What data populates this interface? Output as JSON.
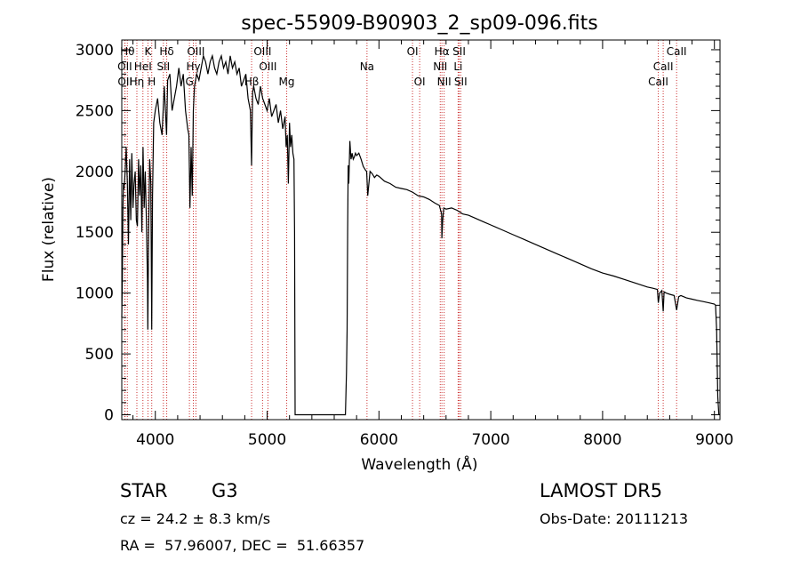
{
  "chart_data": {
    "type": "line",
    "title": "spec-55909-B90903_2_sp09-096.fits",
    "xlabel": "Wavelength (Å)",
    "ylabel": "Flux (relative)",
    "xlim": [
      3700,
      9050
    ],
    "ylim": [
      -40,
      3080
    ],
    "x_ticks": [
      4000,
      5000,
      6000,
      7000,
      8000,
      9000
    ],
    "y_ticks": [
      0,
      500,
      1000,
      1500,
      2000,
      2500,
      3000
    ],
    "grid": false,
    "line_color": "#000000",
    "line_marker_color": "#cc3333",
    "series": [
      {
        "x": [
          3700,
          3705,
          3710,
          3715,
          3720,
          3730,
          3740,
          3750,
          3760,
          3770,
          3780,
          3790,
          3800,
          3810,
          3820,
          3830,
          3840,
          3850,
          3860,
          3870,
          3880,
          3890,
          3900,
          3910,
          3920,
          3930,
          3933,
          3940,
          3950,
          3960,
          3968,
          3975,
          3985,
          4000,
          4020,
          4040,
          4060,
          4080,
          4101,
          4110,
          4130,
          4150,
          4170,
          4190,
          4210,
          4230,
          4250,
          4270,
          4290,
          4300,
          4310,
          4320,
          4330,
          4340,
          4350,
          4370,
          4390,
          4410,
          4430,
          4450,
          4470,
          4490,
          4510,
          4530,
          4550,
          4570,
          4590,
          4610,
          4630,
          4650,
          4670,
          4690,
          4710,
          4730,
          4750,
          4770,
          4790,
          4810,
          4830,
          4850,
          4861,
          4870,
          4880,
          4900,
          4920,
          4940,
          4960,
          4980,
          5000,
          5020,
          5040,
          5060,
          5080,
          5100,
          5120,
          5140,
          5160,
          5170,
          5180,
          5190,
          5200,
          5210,
          5220,
          5230,
          5240,
          5245,
          5250,
          5700,
          5710,
          5715,
          5720,
          5725,
          5730,
          5740,
          5750,
          5760,
          5770,
          5780,
          5790,
          5800,
          5820,
          5840,
          5860,
          5880,
          5890,
          5900,
          5920,
          5940,
          5960,
          5980,
          6000,
          6050,
          6100,
          6150,
          6200,
          6250,
          6300,
          6350,
          6400,
          6450,
          6500,
          6540,
          6560,
          6563,
          6570,
          6580,
          6600,
          6650,
          6700,
          6750,
          6800,
          6850,
          6900,
          6950,
          7000,
          7100,
          7200,
          7300,
          7400,
          7500,
          7600,
          7700,
          7800,
          7900,
          8000,
          8100,
          8200,
          8300,
          8400,
          8450,
          8490,
          8498,
          8510,
          8530,
          8542,
          8550,
          8570,
          8600,
          8640,
          8662,
          8680,
          8700,
          8750,
          8800,
          8850,
          8900,
          8950,
          9000,
          9010,
          9020,
          9030,
          9040
        ],
        "y": [
          800,
          1100,
          1700,
          1900,
          1850,
          2000,
          2200,
          1900,
          1400,
          2100,
          1600,
          2150,
          1700,
          1900,
          2000,
          1600,
          1550,
          2100,
          1800,
          2050,
          1500,
          2200,
          1700,
          2000,
          1600,
          1100,
          700,
          1500,
          2100,
          1900,
          700,
          1800,
          2400,
          2500,
          2600,
          2400,
          2300,
          2700,
          2300,
          2750,
          2800,
          2500,
          2600,
          2700,
          2850,
          2700,
          2800,
          2500,
          2350,
          2300,
          1700,
          2200,
          1800,
          2500,
          2700,
          2800,
          2750,
          2850,
          2950,
          2900,
          2800,
          2900,
          2950,
          2850,
          2800,
          2900,
          2950,
          2850,
          2900,
          2800,
          2950,
          2850,
          2900,
          2800,
          2850,
          2700,
          2750,
          2800,
          2600,
          2500,
          2050,
          2650,
          2700,
          2600,
          2550,
          2700,
          2600,
          2550,
          2500,
          2600,
          2450,
          2500,
          2550,
          2400,
          2500,
          2350,
          2450,
          2200,
          2300,
          1900,
          2400,
          2200,
          2300,
          2150,
          2100,
          1500,
          0,
          0,
          350,
          700,
          1500,
          2050,
          1900,
          2250,
          2100,
          2150,
          2100,
          2120,
          2150,
          2130,
          2150,
          2100,
          2040,
          2010,
          2000,
          1800,
          2000,
          1980,
          1950,
          1970,
          1960,
          1920,
          1900,
          1870,
          1860,
          1850,
          1830,
          1800,
          1790,
          1770,
          1740,
          1720,
          1650,
          1450,
          1600,
          1700,
          1690,
          1700,
          1680,
          1650,
          1640,
          1620,
          1600,
          1580,
          1560,
          1520,
          1480,
          1440,
          1400,
          1360,
          1320,
          1280,
          1240,
          1200,
          1165,
          1140,
          1110,
          1080,
          1050,
          1040,
          1030,
          920,
          1000,
          1020,
          850,
          1010,
          1000,
          990,
          980,
          860,
          970,
          980,
          960,
          950,
          940,
          930,
          920,
          910,
          900,
          700,
          150,
          0
        ]
      }
    ],
    "spectral_lines": [
      {
        "label": "Hθ",
        "wl": 3750,
        "row": 0
      },
      {
        "label": "K",
        "wl": 3934,
        "row": 0
      },
      {
        "label": "Hδ",
        "wl": 4102,
        "row": 0
      },
      {
        "label": "OIII",
        "wl": 4363,
        "row": 0
      },
      {
        "label": "OIII",
        "wl": 4959,
        "row": 0
      },
      {
        "label": "OI",
        "wl": 6300,
        "row": 0
      },
      {
        "label": "Hα",
        "wl": 6563,
        "row": 0
      },
      {
        "label": "SII",
        "wl": 6717,
        "row": 0
      },
      {
        "label": "CaII",
        "wl": 8662,
        "row": 0
      },
      {
        "label": "OII",
        "wl": 3727,
        "row": 1
      },
      {
        "label": "HeI",
        "wl": 3889,
        "row": 1
      },
      {
        "label": "SII",
        "wl": 4072,
        "row": 1
      },
      {
        "label": "Hγ",
        "wl": 4340,
        "row": 1
      },
      {
        "label": "OIII",
        "wl": 5007,
        "row": 1
      },
      {
        "label": "Na",
        "wl": 5893,
        "row": 1
      },
      {
        "label": "NII",
        "wl": 6548,
        "row": 1
      },
      {
        "label": "Li",
        "wl": 6708,
        "row": 1
      },
      {
        "label": "CaII",
        "wl": 8542,
        "row": 1
      },
      {
        "label": "OII",
        "wl": 3729,
        "row": 2
      },
      {
        "label": "Hη",
        "wl": 3835,
        "row": 2
      },
      {
        "label": "H",
        "wl": 3968,
        "row": 2
      },
      {
        "label": "G",
        "wl": 4305,
        "row": 2
      },
      {
        "label": "Hβ",
        "wl": 4861,
        "row": 2
      },
      {
        "label": "Mg",
        "wl": 5175,
        "row": 2
      },
      {
        "label": "OI",
        "wl": 6364,
        "row": 2
      },
      {
        "label": "NII",
        "wl": 6583,
        "row": 2
      },
      {
        "label": "SII",
        "wl": 6731,
        "row": 2
      },
      {
        "label": "CaII",
        "wl": 8498,
        "row": 2
      }
    ]
  },
  "info": {
    "object_class": "STAR",
    "subclass": "G3",
    "survey": "LAMOST DR5",
    "redshift": "cz = 24.2 ± 8.3 km/s",
    "obs_date": "Obs-Date: 20111213",
    "coords": "RA =  57.96007, DEC =  51.66357"
  }
}
